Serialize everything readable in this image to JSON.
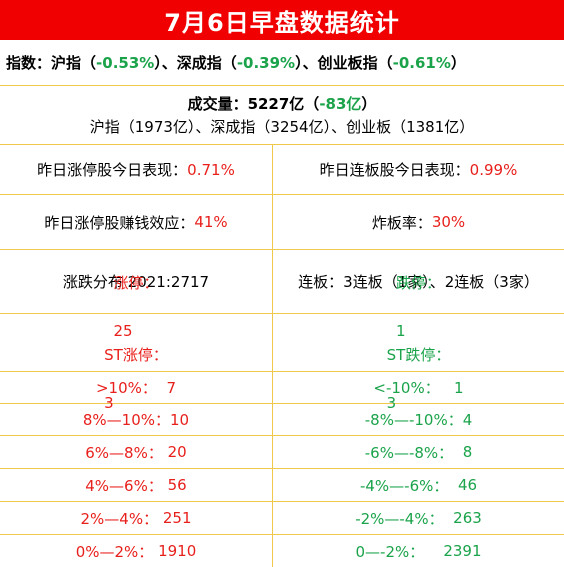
{
  "title": "7月6日早盘数据统计",
  "indices": {
    "label": "指数：",
    "sh_label": "沪指（",
    "sh_value": "-0.53%",
    "sep1": "）、深成指（",
    "sz_value": "-0.39%",
    "sep2": "）、创业板指（",
    "cy_value": "-0.61%",
    "end": "）"
  },
  "volume": {
    "label": "成交量：5227亿（",
    "change": "-83亿",
    "end": "）",
    "breakdown": "沪指（1973亿）、深成指（3254亿）、创业板（1381亿）"
  },
  "perf": {
    "yest_limit_label": "昨日涨停股今日表现：",
    "yest_limit_value": "0.71%",
    "yest_board_label": "昨日连板股今日表现：",
    "yest_board_value": "0.99%"
  },
  "profit": {
    "label": "昨日涨停股赚钱效应：",
    "value": "41%",
    "burst_label": "炸板率：",
    "burst_value": "30%"
  },
  "dist": {
    "left": "涨跌分布 2021:2717",
    "right": "连板：3连板（1家）、2连板（3家）"
  },
  "limits": {
    "up_label": "涨停：",
    "up_value": "25",
    "st_up_label": "ST涨停：",
    "st_up_value": "3",
    "down_label": "跌停：",
    "down_value": "1",
    "st_down_label": "ST跌停：",
    "st_down_value": "3"
  },
  "buckets": [
    {
      "up_label": ">10%：",
      "up_value": "7",
      "down_label": "<-10%：",
      "down_value": "1"
    },
    {
      "up_label": "8%—10%：",
      "up_value": "10",
      "down_label": "-8%—-10%：",
      "down_value": "4"
    },
    {
      "up_label": "6%—8%：",
      "up_value": "20",
      "down_label": "-6%—-8%：",
      "down_value": "8"
    },
    {
      "up_label": "4%—6%：",
      "up_value": "56",
      "down_label": "-4%—-6%：",
      "down_value": "46"
    },
    {
      "up_label": "2%—4%：",
      "up_value": "251",
      "down_label": "-2%—-4%：",
      "down_value": "263"
    },
    {
      "up_label": "0%—2%：",
      "up_value": "1910",
      "down_label": "0—-2%：",
      "down_value": "2391"
    }
  ],
  "colors": {
    "title_bg": "#f00000",
    "rise": "#e8201c",
    "fall": "#1aa34a",
    "border": "#f0c84a"
  }
}
